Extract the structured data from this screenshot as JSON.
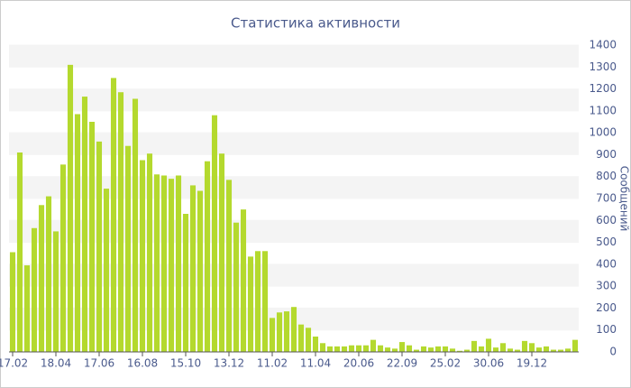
{
  "chart_data": {
    "type": "bar",
    "title": "Статистика активности",
    "y_label": "Сообщений",
    "categories": [
      "17.02",
      null,
      null,
      null,
      null,
      null,
      "18.04",
      null,
      null,
      null,
      null,
      null,
      "17.06",
      null,
      null,
      null,
      null,
      null,
      "16.08",
      null,
      null,
      null,
      null,
      null,
      "15.10",
      null,
      null,
      null,
      null,
      null,
      "13.12",
      null,
      null,
      null,
      null,
      null,
      "11.02",
      null,
      null,
      null,
      null,
      null,
      "11.04",
      null,
      null,
      null,
      null,
      null,
      "20.06",
      null,
      null,
      null,
      null,
      null,
      "22.09",
      null,
      null,
      null,
      null,
      null,
      "25.02",
      null,
      null,
      null,
      null,
      null,
      "30.06",
      null,
      null,
      null,
      null,
      null,
      "19.12",
      null,
      null,
      null,
      null,
      null,
      null
    ],
    "values": [
      455,
      910,
      395,
      565,
      670,
      710,
      550,
      855,
      1310,
      1085,
      1165,
      1050,
      960,
      745,
      1250,
      1185,
      940,
      1155,
      875,
      905,
      810,
      805,
      790,
      805,
      630,
      760,
      735,
      870,
      1080,
      905,
      785,
      590,
      650,
      435,
      460,
      460,
      155,
      180,
      185,
      205,
      125,
      110,
      70,
      40,
      25,
      25,
      25,
      30,
      30,
      30,
      55,
      30,
      20,
      15,
      45,
      30,
      10,
      25,
      20,
      25,
      25,
      15,
      5,
      10,
      50,
      25,
      60,
      20,
      40,
      15,
      10,
      50,
      40,
      20,
      25,
      10,
      10,
      15,
      55
    ],
    "color": "#b4d92e",
    "ylim": [
      0,
      1400
    ],
    "yticks": [
      0,
      100,
      200,
      300,
      400,
      500,
      600,
      700,
      800,
      900,
      1000,
      1100,
      1200,
      1300,
      1400
    ],
    "grid": true
  }
}
